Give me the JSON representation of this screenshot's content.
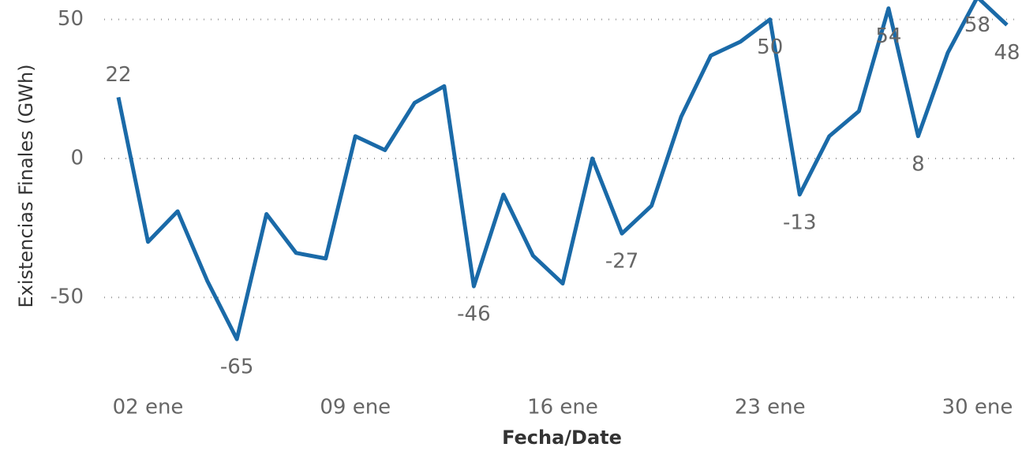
{
  "chart_data": {
    "type": "line",
    "xlabel": "Fecha/Date",
    "ylabel": "Existencias Finales (GWh)",
    "x": [
      1,
      2,
      3,
      4,
      5,
      6,
      7,
      8,
      9,
      10,
      11,
      12,
      13,
      14,
      15,
      16,
      17,
      18,
      19,
      20,
      21,
      22,
      23,
      24,
      25,
      26,
      27,
      28,
      29,
      30,
      31
    ],
    "series": [
      {
        "color": "#1a6aa8",
        "values": [
          22,
          -30,
          -19,
          -44,
          -65,
          -20,
          -34,
          -36,
          8,
          3,
          20,
          26,
          -46,
          -13,
          -35,
          -45,
          0,
          -27,
          -17,
          15,
          37,
          42,
          50,
          -13,
          8,
          17,
          54,
          8,
          38,
          58,
          48
        ],
        "value_labels": [
          "22",
          null,
          null,
          null,
          "-65",
          null,
          null,
          null,
          null,
          null,
          null,
          null,
          "-46",
          null,
          null,
          null,
          null,
          "-27",
          null,
          null,
          null,
          null,
          "50",
          "-13",
          null,
          null,
          "54",
          "8",
          null,
          "58",
          "48"
        ]
      }
    ],
    "xlim": [
      1,
      31
    ],
    "xticks": [
      {
        "value": 2,
        "label": "02 ene"
      },
      {
        "value": 9,
        "label": "09 ene"
      },
      {
        "value": 16,
        "label": "16 ene"
      },
      {
        "value": 23,
        "label": "23 ene"
      },
      {
        "value": 30,
        "label": "30 ene"
      }
    ],
    "ylim": [
      -80,
      57
    ],
    "yticks": [
      -50,
      0,
      50
    ],
    "grid": true
  }
}
